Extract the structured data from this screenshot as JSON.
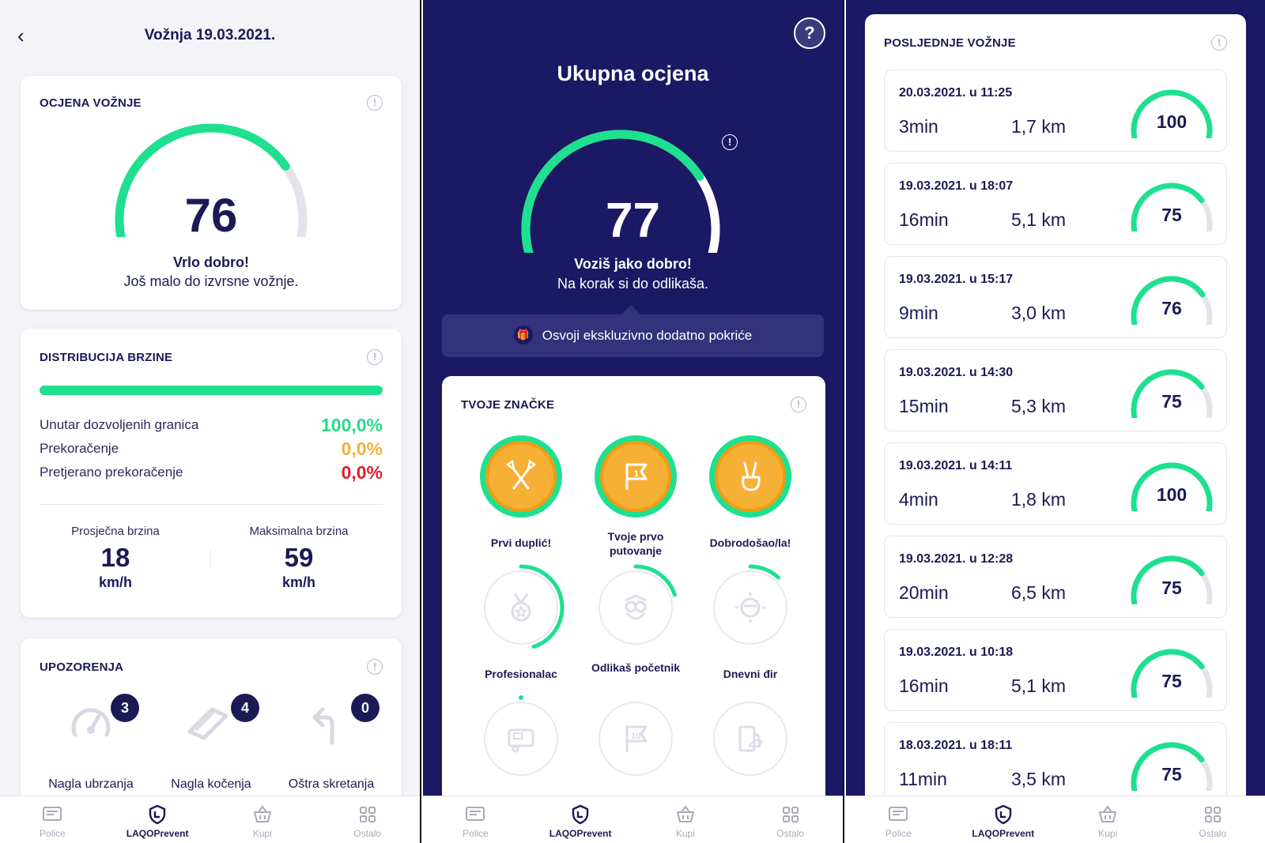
{
  "colors": {
    "navy": "#1b1964",
    "green": "#1ee08f",
    "track": "#e3e3ea",
    "orange": "#f5a623",
    "green_text": "#29d98a",
    "orange_text": "#f3b13c",
    "red_text": "#e0202e"
  },
  "nav": [
    {
      "label": "Police",
      "icon": "document-icon",
      "active": false
    },
    {
      "label": "LAQOPrevent",
      "icon": "shield-icon",
      "active": true
    },
    {
      "label": "Kupi",
      "icon": "basket-icon",
      "active": false
    },
    {
      "label": "Ostalo",
      "icon": "grid-icon",
      "active": false
    }
  ],
  "screen1": {
    "title": "Vožnja 19.03.2021.",
    "rating": {
      "heading": "OCJENA VOŽNJE",
      "score": "76",
      "fraction": 0.76,
      "label": "Vrlo dobro!",
      "sublabel": "Još malo do izvrsne vožnje."
    },
    "distribution": {
      "heading": "DISTRIBUCIJA BRZINE",
      "rows": [
        {
          "label": "Unutar dozvoljenih granica",
          "value": "100,0%",
          "color": "#29d98a"
        },
        {
          "label": "Prekoračenje",
          "value": "0,0%",
          "color": "#f3b13c"
        },
        {
          "label": "Pretjerano prekoračenje",
          "value": "0,0%",
          "color": "#e0202e"
        }
      ],
      "avg_label": "Prosječna brzina",
      "avg_value": "18",
      "avg_unit": "km/h",
      "max_label": "Maksimalna brzina",
      "max_value": "59",
      "max_unit": "km/h"
    },
    "warnings": {
      "heading": "UPOZORENJA",
      "items": [
        {
          "label": "Nagla ubrzanja",
          "count": "3",
          "icon": "speedometer-icon"
        },
        {
          "label": "Nagla kočenja",
          "count": "4",
          "icon": "brake-shoe-icon"
        },
        {
          "label": "Oštra skretanja",
          "count": "0",
          "icon": "turn-arrow-icon"
        }
      ]
    }
  },
  "screen2": {
    "title": "Ukupna ocjena",
    "score": "77",
    "fraction": 0.77,
    "label": "Voziš jako dobro!",
    "sublabel": "Na korak si do odlikaša.",
    "promo": "Osvoji ekskluzivno dodatno pokriće",
    "badges_heading": "TVOJE ZNAČKE",
    "badges": [
      {
        "name": "Prvi duplić!",
        "icon": "crossed-flags-icon",
        "earned": true,
        "progress": 1.0
      },
      {
        "name": "Tvoje prvo putovanje",
        "icon": "flag-one-icon",
        "earned": true,
        "progress": 1.0
      },
      {
        "name": "Dobrodošao/la!",
        "icon": "peace-hand-icon",
        "earned": true,
        "progress": 1.0
      },
      {
        "name": "Profesionalac",
        "icon": "medal-icon",
        "earned": false,
        "progress": 0.45
      },
      {
        "name": "Odlikaš početnik",
        "icon": "owl-icon",
        "earned": false,
        "progress": 0.2
      },
      {
        "name": "Dnevni đir",
        "icon": "sun-glasses-icon",
        "earned": false,
        "progress": 0.12
      },
      {
        "name": "",
        "icon": "camper-icon",
        "earned": false,
        "progress": 0.0
      },
      {
        "name": "",
        "icon": "flag-ten-icon",
        "earned": false,
        "progress": 0.0
      },
      {
        "name": "",
        "icon": "fuel-leaf-icon",
        "earned": false,
        "progress": 0.0
      }
    ]
  },
  "screen3": {
    "heading": "POSLJEDNJE VOŽNJE",
    "rides": [
      {
        "date": "20.03.2021. u 11:25",
        "duration": "3min",
        "distance": "1,7 km",
        "score": "100",
        "fraction": 1.0
      },
      {
        "date": "19.03.2021. u 18:07",
        "duration": "16min",
        "distance": "5,1 km",
        "score": "75",
        "fraction": 0.75
      },
      {
        "date": "19.03.2021. u 15:17",
        "duration": "9min",
        "distance": "3,0 km",
        "score": "76",
        "fraction": 0.76
      },
      {
        "date": "19.03.2021. u 14:30",
        "duration": "15min",
        "distance": "5,3 km",
        "score": "75",
        "fraction": 0.75
      },
      {
        "date": "19.03.2021. u 14:11",
        "duration": "4min",
        "distance": "1,8 km",
        "score": "100",
        "fraction": 1.0
      },
      {
        "date": "19.03.2021. u 12:28",
        "duration": "20min",
        "distance": "6,5 km",
        "score": "75",
        "fraction": 0.75
      },
      {
        "date": "19.03.2021. u 10:18",
        "duration": "16min",
        "distance": "5,1 km",
        "score": "75",
        "fraction": 0.75
      },
      {
        "date": "18.03.2021. u 18:11",
        "duration": "11min",
        "distance": "3,5 km",
        "score": "75",
        "fraction": 0.75
      }
    ]
  }
}
